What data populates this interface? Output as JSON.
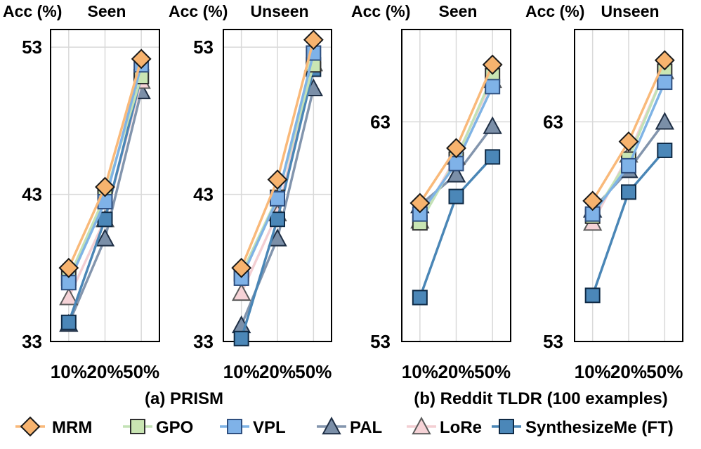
{
  "colors": {
    "MRM": {
      "line": "#f9b97a",
      "fill": "#f7b36e",
      "edge": "#1a1a1a"
    },
    "GPO": {
      "line": "#c3e2b6",
      "fill": "#c9e5b3",
      "edge": "#2f2f2f"
    },
    "VPL": {
      "line": "#7fb3e5",
      "fill": "#7fb2e8",
      "edge": "#2f4f7f"
    },
    "PAL": {
      "line": "#8395ad",
      "fill": "#7b8fa8",
      "edge": "#1f2f45"
    },
    "LoRe": {
      "line": "#f3cfd3",
      "fill": "#f6d3d7",
      "edge": "#5a5a5a"
    },
    "SynthesizeMe (FT)": {
      "line": "#4a86b6",
      "fill": "#4b87b8",
      "edge": "#0f2a45"
    }
  },
  "markers": {
    "MRM": "diamond",
    "GPO": "square",
    "VPL": "square",
    "PAL": "triangle",
    "LoRe": "triangle",
    "SynthesizeMe (FT)": "square"
  },
  "captions": {
    "a": "(a) PRISM",
    "b": "(b) Reddit TLDR (100 examples)"
  },
  "legend": [
    "MRM",
    "GPO",
    "VPL",
    "PAL",
    "LoRe",
    "SynthesizeMe (FT)"
  ],
  "chart_data": [
    {
      "type": "line",
      "ylabel": "Acc (%)",
      "title": "Seen",
      "group": "a",
      "categories": [
        "10%",
        "20%",
        "50%"
      ],
      "yticks": [
        33,
        43,
        53
      ],
      "ylim": [
        33,
        54.2
      ],
      "series": [
        {
          "name": "MRM",
          "values": [
            38.0,
            43.5,
            52.2
          ]
        },
        {
          "name": "GPO",
          "values": [
            37.3,
            42.9,
            51.0
          ]
        },
        {
          "name": "VPL",
          "values": [
            37.0,
            42.5,
            51.8
          ]
        },
        {
          "name": "PAL",
          "values": [
            34.2,
            40.0,
            50.0
          ]
        },
        {
          "name": "LoRe",
          "values": [
            36.0,
            41.3,
            50.7
          ]
        },
        {
          "name": "SynthesizeMe (FT)",
          "values": [
            34.3,
            41.3,
            51.0
          ]
        }
      ]
    },
    {
      "type": "line",
      "ylabel": "Acc (%)",
      "title": "Unseen",
      "group": "a",
      "categories": [
        "10%",
        "20%",
        "50%"
      ],
      "yticks": [
        33,
        43,
        53
      ],
      "ylim": [
        33,
        54.2
      ],
      "series": [
        {
          "name": "MRM",
          "values": [
            38.0,
            44.0,
            53.5
          ]
        },
        {
          "name": "GPO",
          "values": [
            37.6,
            42.8,
            51.8
          ]
        },
        {
          "name": "VPL",
          "values": [
            37.3,
            42.7,
            52.6
          ]
        },
        {
          "name": "PAL",
          "values": [
            34.1,
            40.0,
            50.2
          ]
        },
        {
          "name": "LoRe",
          "values": [
            36.3,
            41.7,
            51.9
          ]
        },
        {
          "name": "SynthesizeMe (FT)",
          "values": [
            33.2,
            41.3,
            51.5
          ]
        }
      ]
    },
    {
      "type": "line",
      "ylabel": "Acc (%)",
      "title": "Seen",
      "group": "b",
      "categories": [
        "10%",
        "20%",
        "50%"
      ],
      "yticks": [
        53,
        63
      ],
      "ylim": [
        53,
        67.2
      ],
      "series": [
        {
          "name": "MRM",
          "values": [
            59.3,
            61.8,
            65.6
          ]
        },
        {
          "name": "GPO",
          "values": [
            58.4,
            61.3,
            65.1
          ]
        },
        {
          "name": "VPL",
          "values": [
            58.8,
            61.1,
            64.6
          ]
        },
        {
          "name": "PAL",
          "values": [
            59.2,
            60.6,
            62.8
          ]
        },
        {
          "name": "LoRe",
          "values": [
            58.5,
            61.4,
            64.9
          ]
        },
        {
          "name": "SynthesizeMe (FT)",
          "values": [
            55.0,
            59.6,
            61.4
          ]
        }
      ]
    },
    {
      "type": "line",
      "ylabel": "Acc (%)",
      "title": "Unseen",
      "group": "b",
      "categories": [
        "10%",
        "20%",
        "50%"
      ],
      "yticks": [
        53,
        63
      ],
      "ylim": [
        53,
        67.2
      ],
      "series": [
        {
          "name": "MRM",
          "values": [
            59.4,
            62.1,
            65.8
          ]
        },
        {
          "name": "GPO",
          "values": [
            58.7,
            61.3,
            65.3
          ]
        },
        {
          "name": "VPL",
          "values": [
            58.8,
            61.0,
            64.8
          ]
        },
        {
          "name": "PAL",
          "values": [
            59.0,
            60.8,
            63.0
          ]
        },
        {
          "name": "LoRe",
          "values": [
            58.4,
            61.5,
            65.3
          ]
        },
        {
          "name": "SynthesizeMe (FT)",
          "values": [
            55.1,
            59.8,
            61.7
          ]
        }
      ]
    }
  ]
}
